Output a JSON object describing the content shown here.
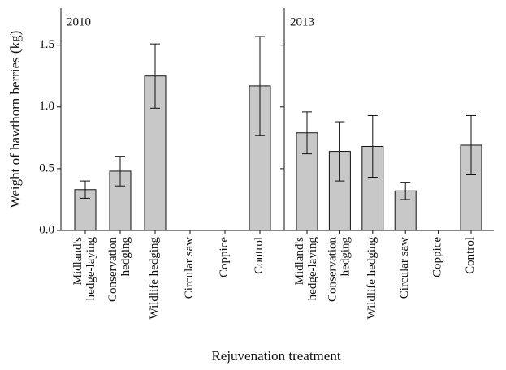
{
  "chart_data": [
    {
      "type": "bar",
      "title": "2010",
      "ylabel": "Weight of hawthorn berries (kg)",
      "xlabel": "Rejuvenation treatment",
      "categories": [
        [
          "Midland's",
          "hedge-laying"
        ],
        [
          "Conservation",
          "hedging"
        ],
        [
          "Wildlife hedging"
        ],
        [
          "Circular saw"
        ],
        [
          "Coppice"
        ],
        [
          "Control"
        ]
      ],
      "values": [
        0.33,
        0.48,
        1.25,
        0,
        0,
        1.17
      ],
      "errors": [
        0.07,
        0.12,
        0.26,
        0,
        0,
        0.4
      ],
      "color": "#c8c8c8",
      "ylim": [
        0,
        1.8
      ],
      "yticks": [
        {
          "value": 0,
          "label": "0.0"
        },
        0.5,
        {
          "value": 1,
          "label": "1.0"
        },
        1.5
      ]
    },
    {
      "type": "bar",
      "title": "2013",
      "categories": [
        [
          "Midland's",
          "hedge-laying"
        ],
        [
          "Conservation",
          "hedging"
        ],
        [
          "Wildlife hedging"
        ],
        [
          "Circular saw"
        ],
        [
          "Coppice"
        ],
        [
          "Control"
        ]
      ],
      "values": [
        0.79,
        0.64,
        0.68,
        0.32,
        0,
        0.69
      ],
      "errors": [
        0.17,
        0.24,
        0.25,
        0.07,
        0,
        0.24
      ],
      "color": "#c8c8c8",
      "ylim": [
        0,
        1.8
      ],
      "yticks": [
        0,
        0.5,
        1,
        1.5
      ]
    }
  ]
}
